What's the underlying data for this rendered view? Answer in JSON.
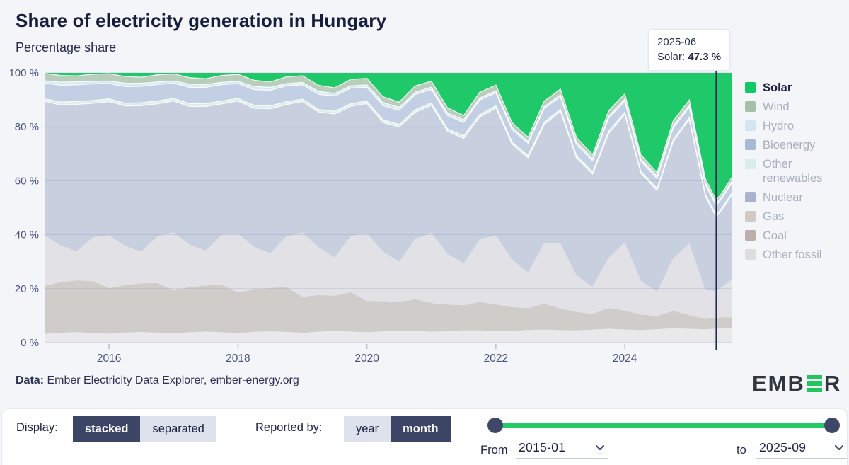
{
  "header": {
    "title": "Share of electricity generation in Hungary",
    "subtitle": "Percentage share"
  },
  "tooltip": {
    "date": "2025-06",
    "series_label": "Solar:",
    "value": "47.3 %"
  },
  "legend": [
    {
      "label": "Solar",
      "swatch": "#12c864",
      "active": true
    },
    {
      "label": "Wind",
      "swatch": "#a5c0aa",
      "active": false
    },
    {
      "label": "Hydro",
      "swatch": "#d3e5f2",
      "active": false
    },
    {
      "label": "Bioenergy",
      "swatch": "#a6bad5",
      "active": false
    },
    {
      "label": "Other renewables",
      "swatch": "#d9eeea",
      "active": false
    },
    {
      "label": "Nuclear",
      "swatch": "#a9b3cd",
      "active": false
    },
    {
      "label": "Gas",
      "swatch": "#cfcac7",
      "active": false
    },
    {
      "label": "Coal",
      "swatch": "#bcaeaa",
      "active": false
    },
    {
      "label": "Other fossil",
      "swatch": "#dddde0",
      "active": false
    }
  ],
  "chart_data": {
    "type": "area",
    "stacked": true,
    "title": "Share of electricity generation in Hungary",
    "ylabel": "Percentage share",
    "ylim": [
      0,
      100
    ],
    "y_ticks": [
      "0 %",
      "20 %",
      "40 %",
      "60 %",
      "80 %",
      "100 %"
    ],
    "x_ticks": [
      "2016",
      "2018",
      "2020",
      "2022",
      "2024"
    ],
    "x_range": [
      "2015-01",
      "2025-09"
    ],
    "selected_x": "2025-06",
    "selected_value_note": "Solar: 47.3 %",
    "grid": true,
    "legend_position": "right",
    "x": [
      "2015-01",
      "2015-04",
      "2015-07",
      "2015-10",
      "2016-01",
      "2016-04",
      "2016-07",
      "2016-10",
      "2017-01",
      "2017-04",
      "2017-07",
      "2017-10",
      "2018-01",
      "2018-04",
      "2018-07",
      "2018-10",
      "2019-01",
      "2019-04",
      "2019-07",
      "2019-10",
      "2020-01",
      "2020-04",
      "2020-07",
      "2020-10",
      "2021-01",
      "2021-04",
      "2021-07",
      "2021-10",
      "2022-01",
      "2022-04",
      "2022-07",
      "2022-10",
      "2023-01",
      "2023-04",
      "2023-07",
      "2023-10",
      "2024-01",
      "2024-04",
      "2024-07",
      "2024-10",
      "2025-01",
      "2025-04",
      "2025-06",
      "2025-07",
      "2025-09"
    ],
    "series": [
      {
        "name": "Solar",
        "color": "#1fc868",
        "values": [
          0.2,
          0.9,
          1.0,
          0.5,
          0.3,
          1.3,
          1.5,
          0.7,
          0.4,
          1.7,
          2.0,
          0.9,
          0.6,
          2.6,
          3.1,
          1.4,
          1.1,
          4.4,
          5.1,
          2.3,
          2.1,
          8.7,
          10.2,
          4.5,
          3.2,
          13.1,
          15.3,
          6.8,
          4.6,
          18.9,
          23.5,
          9.8,
          6.0,
          24.7,
          30.5,
          12.8,
          7.7,
          31.9,
          37.4,
          16.5,
          9.8,
          40.6,
          47.3,
          44.0,
          38.0
        ]
      },
      {
        "name": "Wind",
        "color": "#b8ceba",
        "values": [
          2.9,
          2.4,
          2.1,
          2.6,
          2.9,
          2.4,
          2.1,
          2.6,
          2.8,
          2.3,
          2.0,
          2.5,
          2.7,
          2.2,
          1.9,
          2.4,
          2.6,
          2.2,
          1.9,
          2.3,
          2.5,
          2.1,
          1.8,
          2.2,
          2.3,
          1.9,
          1.6,
          2.0,
          2.2,
          1.8,
          1.5,
          1.9,
          2.1,
          1.7,
          1.4,
          1.8,
          1.9,
          1.6,
          1.3,
          1.7,
          1.8,
          1.5,
          1.2,
          1.2,
          1.4
        ]
      },
      {
        "name": "Hydro",
        "color": "#d9e9f4",
        "values": [
          0.9,
          1.1,
          1.0,
          0.9,
          1.0,
          1.2,
          1.1,
          0.9,
          0.9,
          1.1,
          1.0,
          0.8,
          0.9,
          1.1,
          1.0,
          0.8,
          0.9,
          1.0,
          0.9,
          0.8,
          0.9,
          1.1,
          1.0,
          0.8,
          0.8,
          1.0,
          0.9,
          0.7,
          0.7,
          0.9,
          0.7,
          0.6,
          0.8,
          1.0,
          0.9,
          0.7,
          0.8,
          1.0,
          0.9,
          0.7,
          0.8,
          0.9,
          0.8,
          0.8,
          0.7
        ]
      },
      {
        "name": "Bioenergy",
        "color": "#c3cfe3",
        "values": [
          6.2,
          6.0,
          5.8,
          6.1,
          6.1,
          5.9,
          5.7,
          6.0,
          6.0,
          5.8,
          5.6,
          5.9,
          5.8,
          5.6,
          5.4,
          5.7,
          5.6,
          5.4,
          5.2,
          5.5,
          5.4,
          5.2,
          5.0,
          5.3,
          5.2,
          5.0,
          4.8,
          5.1,
          4.9,
          4.7,
          4.5,
          4.8,
          4.5,
          4.3,
          4.1,
          4.4,
          4.1,
          3.9,
          3.7,
          4.0,
          3.8,
          3.6,
          3.5,
          3.5,
          3.6
        ]
      },
      {
        "name": "Other renewables",
        "color": "#ddeeea",
        "values": [
          1.0,
          1.0,
          1.0,
          1.0,
          1.0,
          1.0,
          1.0,
          1.0,
          1.0,
          1.0,
          1.0,
          1.0,
          1.0,
          1.0,
          1.0,
          1.0,
          0.9,
          0.9,
          0.9,
          0.9,
          0.9,
          0.9,
          0.9,
          0.9,
          0.9,
          0.9,
          0.9,
          0.9,
          0.8,
          0.8,
          0.8,
          0.8,
          0.8,
          0.8,
          0.8,
          0.8,
          0.7,
          0.7,
          0.7,
          0.7,
          0.7,
          0.7,
          0.7,
          0.7,
          0.7
        ]
      },
      {
        "name": "Nuclear",
        "color": "#c8d0e0",
        "values": [
          53,
          50,
          51,
          49,
          53,
          50,
          51,
          48,
          52,
          49,
          50,
          47,
          52,
          49,
          50,
          47,
          51,
          48,
          49,
          46,
          50,
          47,
          47,
          44,
          49,
          46,
          45,
          43,
          48,
          44,
          42,
          41,
          49,
          45,
          42,
          42,
          47,
          42,
          38,
          40,
          45,
          36,
          27.5,
          28,
          31
        ]
      },
      {
        "name": "Gas",
        "color": "#e2e2e6",
        "values": [
          20,
          13,
          10,
          16,
          21,
          14,
          11,
          17,
          23,
          15,
          12,
          18,
          23,
          15,
          12,
          18,
          25,
          17,
          13,
          20,
          26,
          18,
          14,
          21,
          27,
          19,
          15,
          22,
          26,
          18,
          13,
          21,
          24,
          14,
          10,
          17,
          25,
          13,
          9,
          18,
          26,
          11,
          10,
          11,
          14
        ]
      },
      {
        "name": "Coal",
        "color": "#d0ccc9",
        "values": [
          19,
          18,
          18,
          19,
          18,
          17,
          17,
          18,
          17,
          16,
          16,
          17,
          16,
          15,
          15,
          16,
          14,
          13,
          12,
          14,
          12,
          11,
          10,
          11,
          11,
          10,
          9,
          10,
          10,
          9,
          8,
          9,
          8,
          7,
          6,
          7,
          7,
          6,
          5,
          6,
          5,
          4,
          4,
          4,
          4
        ]
      },
      {
        "name": "Other fossil",
        "color": "#e9e9ec",
        "values": [
          3.4,
          3.5,
          3.6,
          3.5,
          3.5,
          3.6,
          3.7,
          3.6,
          3.6,
          3.7,
          3.8,
          3.7,
          3.7,
          3.8,
          3.9,
          3.8,
          3.8,
          3.9,
          4.0,
          3.9,
          4.0,
          4.1,
          4.2,
          4.1,
          4.2,
          4.3,
          4.4,
          4.3,
          4.4,
          4.5,
          4.6,
          4.5,
          4.6,
          4.7,
          4.8,
          4.7,
          4.8,
          4.9,
          5.0,
          4.9,
          5.0,
          5.1,
          5.2,
          5.2,
          5.3
        ]
      }
    ]
  },
  "attribution": {
    "label": "Data:",
    "text": " Ember Electricity Data Explorer, ember-energy.org"
  },
  "logo": {
    "prefix": "EMB",
    "suffix": "R"
  },
  "controls": {
    "display": {
      "label": "Display:",
      "options": [
        "stacked",
        "separated"
      ],
      "selected": "stacked"
    },
    "reported_by": {
      "label": "Reported by:",
      "options": [
        "year",
        "month"
      ],
      "selected": "month"
    },
    "range": {
      "from_label": "From",
      "from_value": "2015-01",
      "to_label": "to",
      "to_value": "2025-09"
    }
  },
  "colors": {
    "accent_green": "#25c965",
    "selection_line": "#252c52",
    "active_button": "#3d4567",
    "inactive_button": "#dde2ec",
    "axis_text": "#49527a",
    "legend_inactive_text": "#a8aebb",
    "title_text": "#181d3d"
  }
}
